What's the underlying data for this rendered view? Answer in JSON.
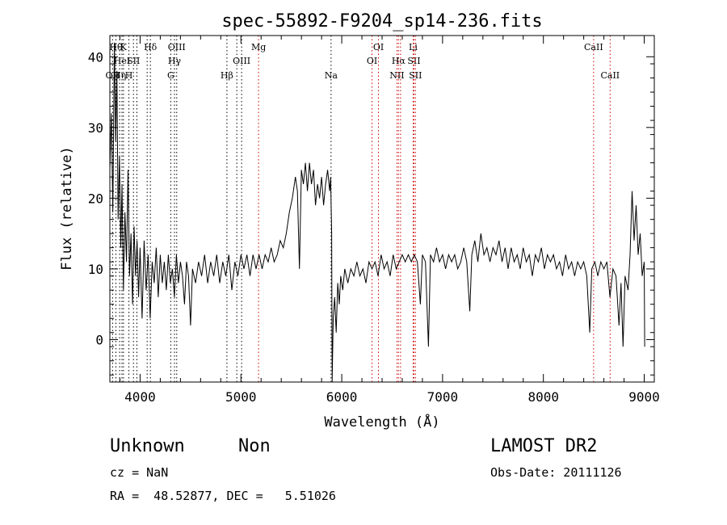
{
  "chart_data": {
    "type": "line",
    "title": "spec-55892-F9204_sp14-236.fits",
    "xlabel": "Wavelength (Å)",
    "ylabel": "Flux (relative)",
    "xlim": [
      3700,
      9100
    ],
    "ylim": [
      -6,
      43
    ],
    "xticks": [
      4000,
      5000,
      6000,
      7000,
      8000,
      9000
    ],
    "yticks": [
      0,
      10,
      20,
      30,
      40
    ],
    "grid": false,
    "series": [
      {
        "color": "#000000",
        "points": [
          [
            3700,
            24
          ],
          [
            3715,
            32
          ],
          [
            3730,
            18
          ],
          [
            3745,
            42
          ],
          [
            3758,
            28
          ],
          [
            3770,
            38
          ],
          [
            3782,
            17
          ],
          [
            3795,
            26
          ],
          [
            3808,
            13
          ],
          [
            3820,
            22
          ],
          [
            3835,
            7
          ],
          [
            3850,
            18
          ],
          [
            3865,
            11
          ],
          [
            3880,
            24
          ],
          [
            3895,
            9
          ],
          [
            3910,
            15
          ],
          [
            3925,
            5
          ],
          [
            3940,
            16
          ],
          [
            3955,
            9
          ],
          [
            3970,
            14
          ],
          [
            3985,
            6
          ],
          [
            4000,
            13
          ],
          [
            4020,
            3
          ],
          [
            4040,
            14
          ],
          [
            4060,
            7
          ],
          [
            4080,
            12
          ],
          [
            4100,
            3
          ],
          [
            4120,
            11
          ],
          [
            4140,
            8
          ],
          [
            4160,
            13
          ],
          [
            4180,
            6
          ],
          [
            4200,
            12
          ],
          [
            4220,
            8
          ],
          [
            4240,
            11
          ],
          [
            4260,
            7
          ],
          [
            4280,
            12
          ],
          [
            4300,
            8
          ],
          [
            4320,
            10
          ],
          [
            4340,
            6
          ],
          [
            4360,
            12
          ],
          [
            4380,
            8
          ],
          [
            4400,
            11
          ],
          [
            4420,
            9
          ],
          [
            4440,
            5
          ],
          [
            4460,
            11
          ],
          [
            4480,
            9
          ],
          [
            4500,
            2
          ],
          [
            4520,
            10
          ],
          [
            4550,
            8
          ],
          [
            4580,
            11
          ],
          [
            4610,
            9
          ],
          [
            4640,
            12
          ],
          [
            4670,
            8
          ],
          [
            4700,
            11
          ],
          [
            4730,
            9
          ],
          [
            4760,
            12
          ],
          [
            4790,
            8
          ],
          [
            4820,
            11
          ],
          [
            4850,
            9
          ],
          [
            4880,
            12
          ],
          [
            4910,
            7
          ],
          [
            4940,
            11
          ],
          [
            4970,
            9
          ],
          [
            5000,
            12
          ],
          [
            5030,
            10
          ],
          [
            5060,
            12
          ],
          [
            5090,
            9
          ],
          [
            5120,
            12
          ],
          [
            5150,
            10
          ],
          [
            5180,
            12
          ],
          [
            5210,
            10
          ],
          [
            5240,
            12
          ],
          [
            5270,
            11
          ],
          [
            5300,
            13
          ],
          [
            5330,
            11
          ],
          [
            5360,
            12
          ],
          [
            5390,
            14
          ],
          [
            5420,
            13
          ],
          [
            5450,
            15
          ],
          [
            5480,
            18
          ],
          [
            5510,
            20
          ],
          [
            5540,
            23
          ],
          [
            5560,
            21
          ],
          [
            5580,
            10
          ],
          [
            5600,
            24
          ],
          [
            5620,
            22
          ],
          [
            5640,
            25
          ],
          [
            5660,
            21
          ],
          [
            5680,
            25
          ],
          [
            5700,
            22
          ],
          [
            5720,
            24
          ],
          [
            5740,
            19
          ],
          [
            5760,
            22
          ],
          [
            5780,
            20
          ],
          [
            5800,
            23
          ],
          [
            5820,
            19
          ],
          [
            5840,
            22
          ],
          [
            5860,
            24
          ],
          [
            5880,
            21
          ],
          [
            5890,
            23
          ],
          [
            5900,
            15
          ],
          [
            5905,
            -6
          ],
          [
            5915,
            3
          ],
          [
            5930,
            6
          ],
          [
            5945,
            1
          ],
          [
            5960,
            8
          ],
          [
            5975,
            5
          ],
          [
            5990,
            9
          ],
          [
            6010,
            7
          ],
          [
            6030,
            10
          ],
          [
            6060,
            8
          ],
          [
            6090,
            10
          ],
          [
            6120,
            9
          ],
          [
            6150,
            11
          ],
          [
            6180,
            9
          ],
          [
            6210,
            10
          ],
          [
            6240,
            8
          ],
          [
            6270,
            11
          ],
          [
            6300,
            10
          ],
          [
            6330,
            11
          ],
          [
            6360,
            9
          ],
          [
            6390,
            12
          ],
          [
            6420,
            10
          ],
          [
            6450,
            11
          ],
          [
            6480,
            9
          ],
          [
            6510,
            12
          ],
          [
            6540,
            10
          ],
          [
            6570,
            11
          ],
          [
            6600,
            12
          ],
          [
            6630,
            11
          ],
          [
            6660,
            12
          ],
          [
            6690,
            11
          ],
          [
            6720,
            12
          ],
          [
            6750,
            11
          ],
          [
            6780,
            5
          ],
          [
            6800,
            12
          ],
          [
            6830,
            11
          ],
          [
            6860,
            -1
          ],
          [
            6880,
            12
          ],
          [
            6910,
            11
          ],
          [
            6940,
            13
          ],
          [
            6970,
            11
          ],
          [
            7000,
            12
          ],
          [
            7030,
            10
          ],
          [
            7060,
            12
          ],
          [
            7090,
            11
          ],
          [
            7120,
            12
          ],
          [
            7150,
            10
          ],
          [
            7180,
            11
          ],
          [
            7210,
            13
          ],
          [
            7240,
            11
          ],
          [
            7270,
            4
          ],
          [
            7290,
            12
          ],
          [
            7320,
            14
          ],
          [
            7350,
            11
          ],
          [
            7380,
            15
          ],
          [
            7410,
            12
          ],
          [
            7440,
            13
          ],
          [
            7470,
            11
          ],
          [
            7500,
            13
          ],
          [
            7530,
            12
          ],
          [
            7560,
            14
          ],
          [
            7590,
            11
          ],
          [
            7620,
            13
          ],
          [
            7650,
            10
          ],
          [
            7680,
            13
          ],
          [
            7710,
            11
          ],
          [
            7740,
            12
          ],
          [
            7770,
            10
          ],
          [
            7800,
            13
          ],
          [
            7830,
            11
          ],
          [
            7860,
            12
          ],
          [
            7890,
            9
          ],
          [
            7920,
            12
          ],
          [
            7950,
            11
          ],
          [
            7980,
            13
          ],
          [
            8010,
            10
          ],
          [
            8040,
            12
          ],
          [
            8070,
            11
          ],
          [
            8100,
            12
          ],
          [
            8130,
            10
          ],
          [
            8160,
            11
          ],
          [
            8190,
            9
          ],
          [
            8220,
            12
          ],
          [
            8250,
            10
          ],
          [
            8280,
            11
          ],
          [
            8310,
            9
          ],
          [
            8340,
            11
          ],
          [
            8370,
            10
          ],
          [
            8400,
            11
          ],
          [
            8430,
            9
          ],
          [
            8460,
            1
          ],
          [
            8480,
            10
          ],
          [
            8510,
            11
          ],
          [
            8540,
            9
          ],
          [
            8570,
            11
          ],
          [
            8600,
            10
          ],
          [
            8630,
            11
          ],
          [
            8660,
            6
          ],
          [
            8690,
            10
          ],
          [
            8720,
            9
          ],
          [
            8750,
            2
          ],
          [
            8770,
            8
          ],
          [
            8790,
            -1
          ],
          [
            8810,
            9
          ],
          [
            8840,
            7
          ],
          [
            8860,
            12
          ],
          [
            8880,
            21
          ],
          [
            8900,
            14
          ],
          [
            8920,
            19
          ],
          [
            8940,
            12
          ],
          [
            8960,
            15
          ],
          [
            8980,
            9
          ],
          [
            9000,
            11
          ],
          [
            9005,
            -1
          ]
        ]
      }
    ],
    "line_markers": [
      {
        "wavelength": 3727,
        "label": "OII",
        "row": 3,
        "color": "#000000"
      },
      {
        "wavelength": 3760,
        "label": "Hθ",
        "row": 1,
        "color": "#000000"
      },
      {
        "wavelength": 3797,
        "label": "Hη",
        "row": 3,
        "color": "#000000"
      },
      {
        "wavelength": 3835,
        "label": "K",
        "row": 1,
        "color": "#000000"
      },
      {
        "wavelength": 3820,
        "label": "HeI",
        "row": 2,
        "color": "#000000"
      },
      {
        "wavelength": 3889,
        "label": "H",
        "row": 3,
        "color": "#000000"
      },
      {
        "wavelength": 3934,
        "label": "SII",
        "row": 2,
        "color": "#000000"
      },
      {
        "wavelength": 3968,
        "label": "",
        "row": 0,
        "color": "#000000"
      },
      {
        "wavelength": 4102,
        "label": "Hδ",
        "row": 1,
        "color": "#000000"
      },
      {
        "wavelength": 4070,
        "label": "",
        "row": 0,
        "color": "#000000"
      },
      {
        "wavelength": 4304,
        "label": "G",
        "row": 3,
        "color": "#000000"
      },
      {
        "wavelength": 4341,
        "label": "Hγ",
        "row": 2,
        "color": "#000000"
      },
      {
        "wavelength": 4363,
        "label": "OIII",
        "row": 1,
        "color": "#000000"
      },
      {
        "wavelength": 4861,
        "label": "Hβ",
        "row": 3,
        "color": "#000000"
      },
      {
        "wavelength": 4959,
        "label": "",
        "row": 0,
        "color": "#000000"
      },
      {
        "wavelength": 5007,
        "label": "OIII",
        "row": 2,
        "color": "#000000"
      },
      {
        "wavelength": 5175,
        "label": "Mg",
        "row": 1,
        "color": "#cc0000"
      },
      {
        "wavelength": 5894,
        "label": "Na",
        "row": 3,
        "color": "#000000"
      },
      {
        "wavelength": 6300,
        "label": "OI",
        "row": 2,
        "color": "#cc0000"
      },
      {
        "wavelength": 6364,
        "label": "OI",
        "row": 1,
        "color": "#cc0000"
      },
      {
        "wavelength": 6548,
        "label": "NII",
        "row": 3,
        "color": "#cc0000"
      },
      {
        "wavelength": 6563,
        "label": "Hα",
        "row": 2,
        "color": "#cc0000"
      },
      {
        "wavelength": 6583,
        "label": "",
        "row": 0,
        "color": "#cc0000"
      },
      {
        "wavelength": 6708,
        "label": "Li",
        "row": 1,
        "color": "#cc0000"
      },
      {
        "wavelength": 6716,
        "label": "SII",
        "row": 2,
        "color": "#cc0000"
      },
      {
        "wavelength": 6731,
        "label": "SII",
        "row": 3,
        "color": "#cc0000"
      },
      {
        "wavelength": 8498,
        "label": "CaII",
        "row": 1,
        "color": "#cc0000"
      },
      {
        "wavelength": 8662,
        "label": "CaII",
        "row": 3,
        "color": "#cc0000"
      }
    ]
  },
  "info": {
    "class": "Unknown",
    "subclass": "Non",
    "survey": "LAMOST DR2",
    "cz": "cz = NaN",
    "obs_date": "Obs-Date: 20111126",
    "coords": "RA =  48.52877, DEC =   5.51026"
  }
}
